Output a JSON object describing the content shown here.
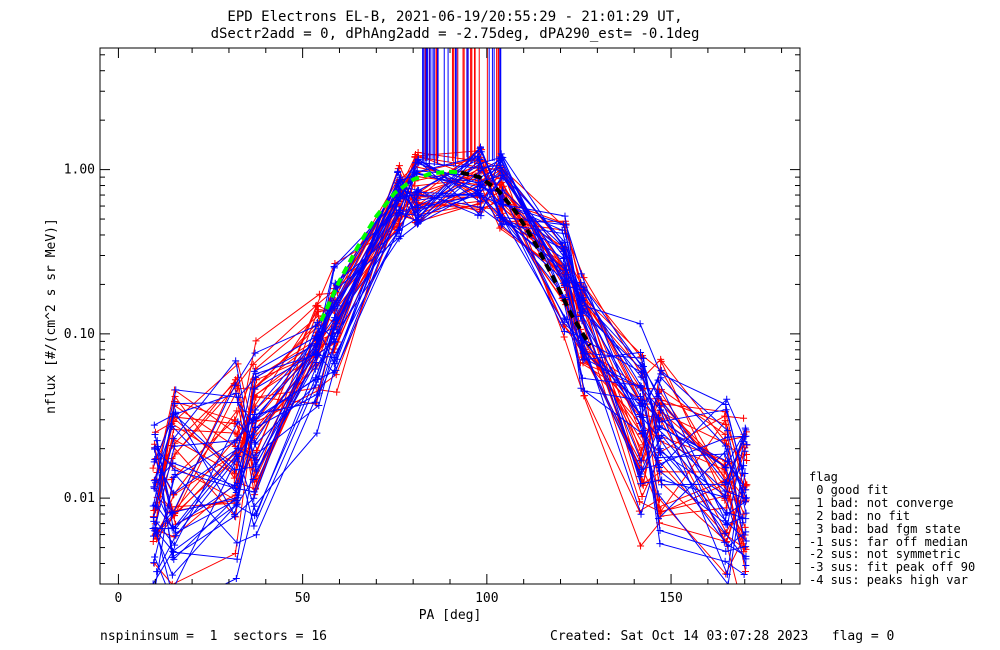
{
  "chart_data": {
    "type": "line",
    "title": "EPD Electrons EL-B, 2021-06-19/20:55:29 - 21:01:29 UT,",
    "subtitle": "dSectr2add = 0, dPhAng2add = -2.75deg, dPA290_est=  -0.1deg",
    "xlabel": "PA [deg]",
    "ylabel": "nflux [#/(cm^2 s sr MeV)]",
    "xlim": [
      -5,
      185
    ],
    "ylim": [
      0.003,
      5.5
    ],
    "yscale": "log",
    "xticks": [
      0,
      50,
      100,
      150
    ],
    "xtick_labels": [
      "0",
      "50",
      "100",
      "150"
    ],
    "yticks": [
      0.01,
      0.1,
      1.0
    ],
    "ytick_labels": [
      "0.01",
      "0.10",
      "1.00"
    ],
    "grid": false,
    "pa_bins": [
      10,
      15,
      32,
      37,
      54,
      59,
      76,
      81,
      98,
      104,
      121,
      126,
      142,
      147,
      165,
      170
    ],
    "series": [
      {
        "color": "#ff0000",
        "marker": "+",
        "profile": [
          0.011,
          0.012,
          0.018,
          0.024,
          0.08,
          0.12,
          0.68,
          0.78,
          0.85,
          0.72,
          0.22,
          0.095,
          0.024,
          0.018,
          0.011,
          0.009
        ]
      },
      {
        "color": "#0000ff",
        "marker": "+",
        "profile": [
          0.01,
          0.011,
          0.017,
          0.022,
          0.07,
          0.11,
          0.62,
          0.76,
          0.86,
          0.76,
          0.26,
          0.11,
          0.028,
          0.021,
          0.012,
          0.01
        ]
      },
      {
        "color": "#00ff00",
        "style": "dashed",
        "x": [
          55,
          60,
          65,
          70,
          75,
          80,
          85,
          90,
          93
        ],
        "y": [
          0.12,
          0.21,
          0.34,
          0.52,
          0.72,
          0.87,
          0.95,
          0.97,
          0.96
        ]
      },
      {
        "color": "#000000",
        "style": "dashed",
        "x": [
          93,
          98,
          103,
          108,
          113,
          118,
          123,
          128
        ],
        "y": [
          0.96,
          0.9,
          0.75,
          0.55,
          0.36,
          0.22,
          0.13,
          0.085
        ]
      }
    ]
  },
  "footer": {
    "left": "nspininsum =  1  sectors = 16",
    "right": "Created: Sat Oct 14 03:07:28 2023   flag = 0"
  },
  "legend": {
    "title": "flag",
    "items": [
      " 0 good fit",
      " 1 bad: not converge",
      " 2 bad: no fit",
      " 3 bad: bad fgm state",
      "-1 sus: far off median",
      "-2 sus: not symmetric",
      "-3 sus: fit peak off 90",
      "-4 sus: peaks high var"
    ]
  }
}
